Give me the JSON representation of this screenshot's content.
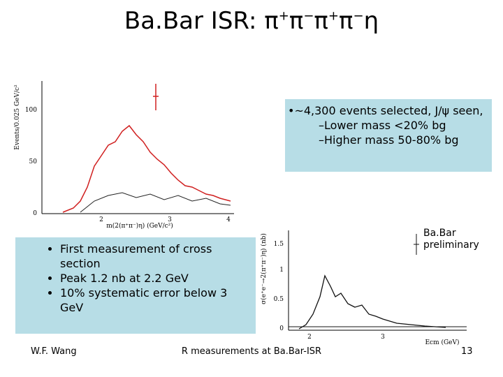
{
  "title": {
    "text": "Ba.Bar ISR: ",
    "particles": [
      "π",
      "+",
      "π",
      "−",
      "π",
      "+",
      "π",
      "−",
      "η"
    ]
  },
  "plot_left": {
    "y_label": "Events/0.025 GeV/c²",
    "y_ticks": [
      "100",
      "50",
      "0"
    ],
    "x_ticks": [
      "2",
      "3",
      "4"
    ],
    "x_label": "m(2(π⁺π⁻)η) (GeV/c²)"
  },
  "info_box": {
    "lead": "•~4,300 events selected, J/ψ seen,",
    "items": [
      "–Lower mass <20% bg",
      "–Higher mass 50-80% bg"
    ]
  },
  "bullets": [
    "First measurement of cross section",
    "Peak 1.2 nb at 2.2 GeV",
    "10% systematic error below 3 GeV"
  ],
  "plot_right": {
    "y_label": "σ(e⁺e⁻→2(π⁺π⁻)η) (nb)",
    "y_ticks": [
      "1.5",
      "1",
      "0.5",
      "0"
    ],
    "x_ticks": [
      "2",
      "3"
    ],
    "x_label": "Ecm (GeV)",
    "note": "Ba.Bar preliminary"
  },
  "footer": {
    "author": "W.F. Wang",
    "center": "R measurements at Ba.Bar-ISR",
    "page": "13"
  }
}
